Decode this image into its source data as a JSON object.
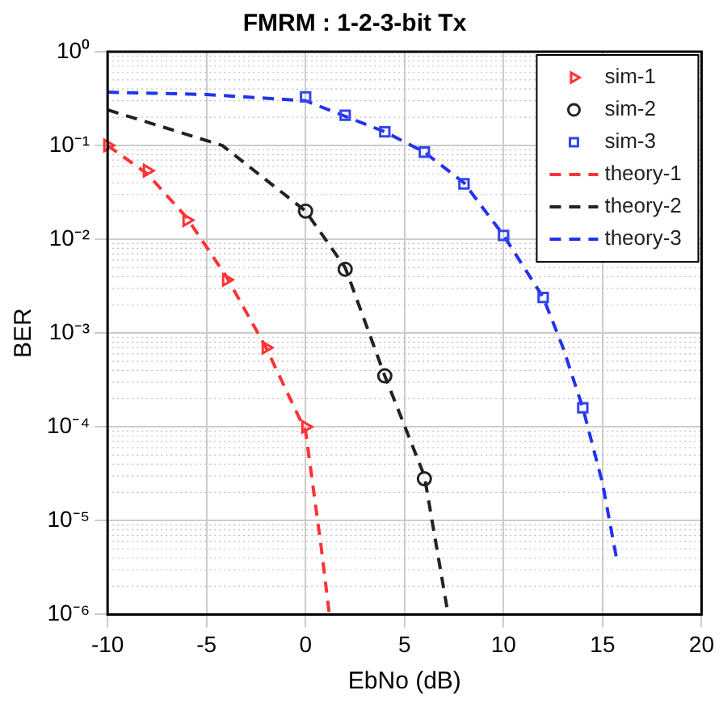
{
  "chart_data": {
    "type": "line",
    "title": "FMRM : 1-2-3-bit Tx",
    "xlabel": "EbNo (dB)",
    "ylabel": "BER",
    "log": "y",
    "grid": true,
    "legend": "top right",
    "xlim": [
      -10,
      20
    ],
    "xticks": [
      -10,
      -5,
      0,
      5,
      10,
      15,
      20
    ],
    "ylim": [
      1e-06,
      1
    ],
    "yticks": [
      {
        "value": 1,
        "label": "10⁰"
      },
      {
        "value": 0.1,
        "label": "10⁻¹"
      },
      {
        "value": 0.01,
        "label": "10⁻²"
      },
      {
        "value": 0.001,
        "label": "10⁻³"
      },
      {
        "value": 0.0001,
        "label": "10⁻⁴"
      },
      {
        "value": 1e-05,
        "label": "10⁻⁵"
      },
      {
        "value": 1e-06,
        "label": "10⁻⁶"
      }
    ],
    "series": [
      {
        "name": "sim-1",
        "type": "scatter",
        "marker": "triangle",
        "color": "#ff3333",
        "x": [
          -10,
          -8,
          -6,
          -4,
          -2,
          0
        ],
        "values": [
          0.1,
          0.054,
          0.016,
          0.0037,
          0.0007,
          0.0001
        ]
      },
      {
        "name": "sim-2",
        "type": "scatter",
        "marker": "circle",
        "color": "#222222",
        "x": [
          0,
          2,
          4,
          6
        ],
        "values": [
          0.02,
          0.0048,
          0.00035,
          2.8e-05
        ]
      },
      {
        "name": "sim-3",
        "type": "scatter",
        "marker": "square",
        "color": "#3344ee",
        "x": [
          0,
          2,
          4,
          6,
          8,
          10,
          12,
          14
        ],
        "values": [
          0.33,
          0.21,
          0.14,
          0.085,
          0.039,
          0.011,
          0.0024,
          0.00016
        ]
      },
      {
        "name": "theory-1",
        "type": "line",
        "line_style": "dashed",
        "color": "#ff3333",
        "x": [
          -10,
          -8,
          -6,
          -4,
          -2,
          0,
          0.8,
          1.2
        ],
        "values": [
          0.1,
          0.05,
          0.017,
          0.004,
          0.0007,
          9e-05,
          5e-06,
          1e-06
        ]
      },
      {
        "name": "theory-2",
        "type": "line",
        "line_style": "dashed",
        "color": "#222222",
        "x": [
          -10,
          -4.2,
          0,
          2,
          4,
          6,
          7.2
        ],
        "values": [
          0.24,
          0.1,
          0.02,
          0.005,
          0.00035,
          3e-05,
          1e-06
        ]
      },
      {
        "name": "theory-3",
        "type": "line",
        "line_style": "dashed",
        "color": "#2233ee",
        "x": [
          -10,
          -5,
          0,
          4,
          6,
          8,
          10,
          12,
          13,
          14,
          15,
          15.7
        ],
        "values": [
          0.37,
          0.35,
          0.3,
          0.14,
          0.085,
          0.04,
          0.011,
          0.0024,
          0.0007,
          0.00016,
          2.5e-05,
          4e-06
        ]
      }
    ]
  }
}
